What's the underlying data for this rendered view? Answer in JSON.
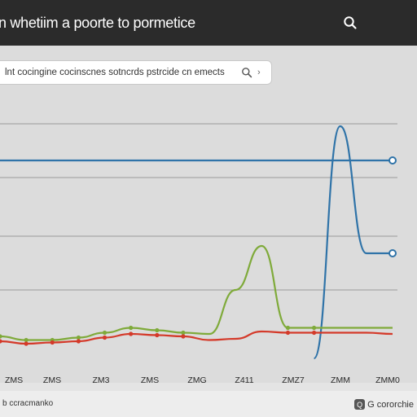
{
  "header": {
    "title": "n whetiim a poorte to pormetice",
    "search_icon": "search-icon"
  },
  "search": {
    "value": "lnt cocingine cocinscnes sotncrds pstrcide cn emects",
    "search_icon": "search-icon",
    "menu_icon": "chevron-right-icon"
  },
  "footer": {
    "left_text": "b ccracmanko",
    "right_badge": "Q",
    "right_text": "G cororchie"
  },
  "colors": {
    "header_bg": "#2b2b2b",
    "blue": "#2f73a8",
    "green": "#7faa3a",
    "red": "#d43a2a",
    "grid": "#9a9a9a"
  },
  "chart_data": {
    "type": "line",
    "categories": [
      "ZMS",
      "ZMS",
      "ZM3",
      "ZMS",
      "ZMG",
      "Z411",
      "ZMZ7",
      "ZMM",
      "ZMM0"
    ],
    "x": [
      0,
      1,
      2,
      3,
      4,
      5,
      6,
      7,
      8,
      9,
      10,
      11,
      12,
      13,
      14,
      15
    ],
    "series": [
      {
        "color": "#2f73a8",
        "values": [
          81,
          81,
          81,
          81,
          81,
          81,
          81,
          81,
          81,
          81,
          81,
          81,
          81,
          81,
          81,
          81
        ],
        "markers": [
          15
        ]
      },
      {
        "color": "#2f73a8",
        "values": [
          null,
          null,
          null,
          null,
          null,
          null,
          null,
          null,
          null,
          null,
          null,
          null,
          0,
          95,
          43,
          43
        ],
        "markers": [
          15
        ]
      },
      {
        "color": "#7faa3a",
        "values": [
          9,
          7.5,
          7.5,
          8.5,
          10.5,
          12.5,
          11.5,
          10.5,
          10,
          28,
          46,
          12.5,
          12.5,
          12.5,
          12.5,
          12.5
        ],
        "markers": [
          0,
          1,
          2,
          3,
          4,
          5,
          6,
          7,
          11,
          12
        ]
      },
      {
        "color": "#d43a2a",
        "values": [
          7,
          6,
          6.5,
          7,
          8.5,
          10,
          9.5,
          9,
          7.5,
          8,
          11,
          10.5,
          10.5,
          10.5,
          10.5,
          10
        ],
        "markers": [
          0,
          1,
          2,
          3,
          4,
          5,
          6,
          7,
          11,
          12
        ]
      }
    ],
    "ylim": [
      0,
      100
    ],
    "grid": true
  }
}
